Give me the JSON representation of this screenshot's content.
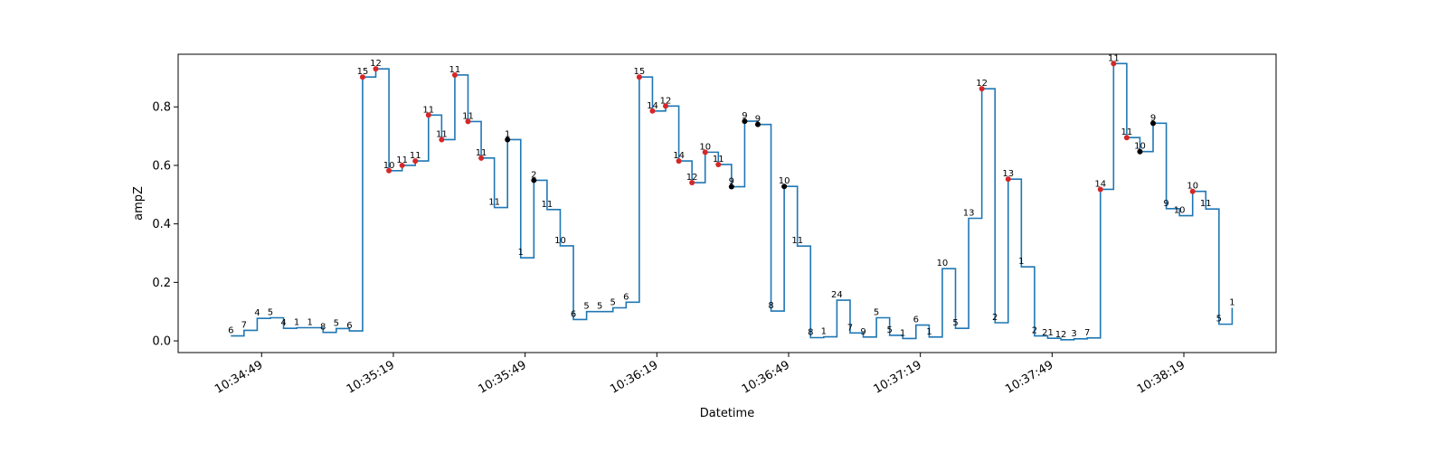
{
  "chart_data": {
    "type": "line",
    "step": "post",
    "xlabel": "Datetime",
    "ylabel": "ampZ",
    "x_ticks": [
      "10:34:49",
      "10:35:19",
      "10:35:49",
      "10:36:19",
      "10:36:49",
      "10:37:19",
      "10:37:49",
      "10:38:19"
    ],
    "y_ticks": [
      "0.0",
      "0.2",
      "0.4",
      "0.6",
      "0.8"
    ],
    "xlim": [
      -19,
      231
    ],
    "ylim": [
      -0.04,
      0.98
    ],
    "line_color": "#1f77b4",
    "marker_colors": {
      "red": "#d62728",
      "black": "#000000"
    },
    "points": [
      {
        "x": -7,
        "y": 0.017,
        "label": "6"
      },
      {
        "x": -4,
        "y": 0.036,
        "label": "7"
      },
      {
        "x": -1,
        "y": 0.077,
        "label": "4"
      },
      {
        "x": 2,
        "y": 0.079,
        "label": "5"
      },
      {
        "x": 5,
        "y": 0.043,
        "label": "4"
      },
      {
        "x": 8,
        "y": 0.045,
        "label": "1"
      },
      {
        "x": 11,
        "y": 0.045,
        "label": "1"
      },
      {
        "x": 14,
        "y": 0.029,
        "label": "8"
      },
      {
        "x": 17,
        "y": 0.042,
        "label": "5"
      },
      {
        "x": 20,
        "y": 0.034,
        "label": "6"
      },
      {
        "x": 23,
        "y": 0.902,
        "label": "15",
        "marker": "red"
      },
      {
        "x": 26,
        "y": 0.93,
        "label": "12",
        "marker": "red"
      },
      {
        "x": 29,
        "y": 0.582,
        "label": "10",
        "marker": "red"
      },
      {
        "x": 32,
        "y": 0.6,
        "label": "11",
        "marker": "red"
      },
      {
        "x": 35,
        "y": 0.615,
        "label": "11",
        "marker": "red"
      },
      {
        "x": 38,
        "y": 0.772,
        "label": "11",
        "marker": "red"
      },
      {
        "x": 41,
        "y": 0.688,
        "label": "11",
        "marker": "red"
      },
      {
        "x": 44,
        "y": 0.909,
        "label": "11",
        "marker": "red"
      },
      {
        "x": 47,
        "y": 0.75,
        "label": "11",
        "marker": "red"
      },
      {
        "x": 50,
        "y": 0.625,
        "label": "11",
        "marker": "red"
      },
      {
        "x": 53,
        "y": 0.456,
        "label": "11"
      },
      {
        "x": 56,
        "y": 0.688,
        "label": "1",
        "marker": "black"
      },
      {
        "x": 59,
        "y": 0.284,
        "label": "1"
      },
      {
        "x": 62,
        "y": 0.549,
        "label": "2",
        "marker": "black"
      },
      {
        "x": 65,
        "y": 0.449,
        "label": "11"
      },
      {
        "x": 68,
        "y": 0.325,
        "label": "10"
      },
      {
        "x": 71,
        "y": 0.073,
        "label": "6"
      },
      {
        "x": 74,
        "y": 0.1,
        "label": "5"
      },
      {
        "x": 77,
        "y": 0.1,
        "label": "5"
      },
      {
        "x": 80,
        "y": 0.113,
        "label": "5"
      },
      {
        "x": 83,
        "y": 0.132,
        "label": "6"
      },
      {
        "x": 86,
        "y": 0.902,
        "label": "15",
        "marker": "red"
      },
      {
        "x": 89,
        "y": 0.786,
        "label": "14",
        "marker": "red"
      },
      {
        "x": 92,
        "y": 0.803,
        "label": "12",
        "marker": "red"
      },
      {
        "x": 95,
        "y": 0.615,
        "label": "14",
        "marker": "red"
      },
      {
        "x": 98,
        "y": 0.541,
        "label": "12",
        "marker": "red"
      },
      {
        "x": 101,
        "y": 0.645,
        "label": "10",
        "marker": "red"
      },
      {
        "x": 104,
        "y": 0.603,
        "label": "11",
        "marker": "red"
      },
      {
        "x": 107,
        "y": 0.527,
        "label": "9",
        "marker": "black"
      },
      {
        "x": 110,
        "y": 0.751,
        "label": "9",
        "marker": "black"
      },
      {
        "x": 113,
        "y": 0.74,
        "label": "9",
        "marker": "black"
      },
      {
        "x": 116,
        "y": 0.102,
        "label": "8"
      },
      {
        "x": 119,
        "y": 0.528,
        "label": "10",
        "marker": "black"
      },
      {
        "x": 122,
        "y": 0.324,
        "label": "11"
      },
      {
        "x": 125,
        "y": 0.011,
        "label": "8"
      },
      {
        "x": 128,
        "y": 0.014,
        "label": "1"
      },
      {
        "x": 131,
        "y": 0.139,
        "label": "24"
      },
      {
        "x": 134,
        "y": 0.027,
        "label": "7"
      },
      {
        "x": 137,
        "y": 0.013,
        "label": "9"
      },
      {
        "x": 140,
        "y": 0.079,
        "label": "5"
      },
      {
        "x": 143,
        "y": 0.019,
        "label": "5"
      },
      {
        "x": 146,
        "y": 0.008,
        "label": "1"
      },
      {
        "x": 149,
        "y": 0.054,
        "label": "6"
      },
      {
        "x": 152,
        "y": 0.013,
        "label": "1"
      },
      {
        "x": 155,
        "y": 0.247,
        "label": "10"
      },
      {
        "x": 158,
        "y": 0.043,
        "label": "5"
      },
      {
        "x": 161,
        "y": 0.419,
        "label": "13"
      },
      {
        "x": 164,
        "y": 0.862,
        "label": "12",
        "marker": "red"
      },
      {
        "x": 167,
        "y": 0.062,
        "label": "2"
      },
      {
        "x": 170,
        "y": 0.553,
        "label": "13",
        "marker": "red"
      },
      {
        "x": 173,
        "y": 0.253,
        "label": "1"
      },
      {
        "x": 176,
        "y": 0.017,
        "label": "2"
      },
      {
        "x": 179,
        "y": 0.009,
        "label": "21"
      },
      {
        "x": 182,
        "y": 0.004,
        "label": "12"
      },
      {
        "x": 185,
        "y": 0.007,
        "label": "3"
      },
      {
        "x": 188,
        "y": 0.01,
        "label": "7"
      },
      {
        "x": 191,
        "y": 0.518,
        "label": "14",
        "marker": "red"
      },
      {
        "x": 194,
        "y": 0.948,
        "label": "11",
        "marker": "red"
      },
      {
        "x": 197,
        "y": 0.695,
        "label": "11",
        "marker": "red"
      },
      {
        "x": 200,
        "y": 0.647,
        "label": "10",
        "marker": "black"
      },
      {
        "x": 203,
        "y": 0.744,
        "label": "9",
        "marker": "black"
      },
      {
        "x": 206,
        "y": 0.452,
        "label": "9"
      },
      {
        "x": 209,
        "y": 0.428,
        "label": "10"
      },
      {
        "x": 212,
        "y": 0.511,
        "label": "10",
        "marker": "red"
      },
      {
        "x": 215,
        "y": 0.451,
        "label": "11"
      },
      {
        "x": 218,
        "y": 0.057,
        "label": "5"
      },
      {
        "x": 221,
        "y": 0.113,
        "label": "1"
      }
    ]
  }
}
